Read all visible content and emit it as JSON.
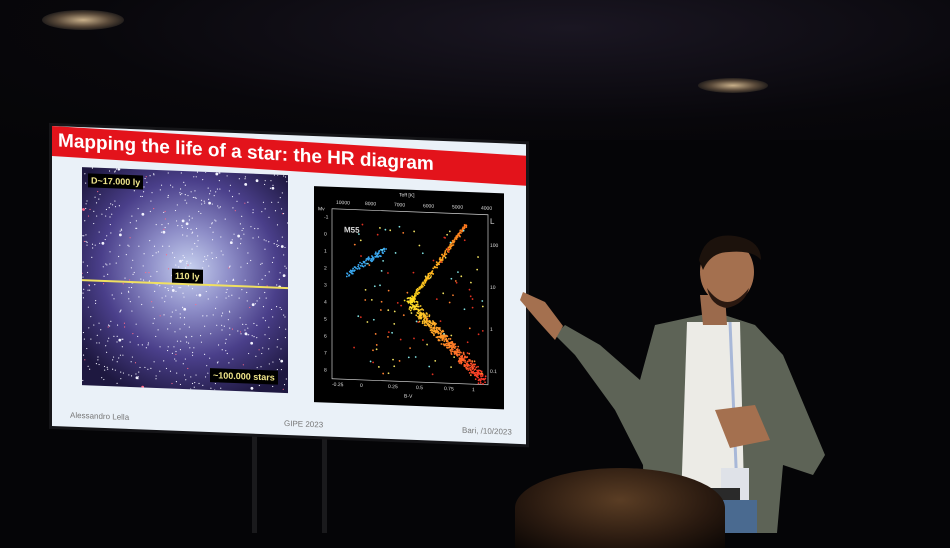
{
  "slide": {
    "title": "Mapping the life of a star: the HR diagram",
    "cluster_image": {
      "distance_label": "D~17.000 ly",
      "size_label": "110 ly",
      "stars_label": "~100.000 stars"
    },
    "hr_diagram": {
      "cluster_name": "M55",
      "top_axis_label": "Teff [K]",
      "top_ticks": [
        "10000",
        "8000",
        "7000",
        "6000",
        "5000",
        "4000"
      ],
      "left_axis_label": "Mv",
      "left_ticks": [
        "-1",
        "0",
        "1",
        "2",
        "3",
        "4",
        "5",
        "6",
        "7",
        "8"
      ],
      "right_axis_label": "L",
      "right_ticks": [
        "100",
        "10",
        "1",
        "0.1"
      ],
      "bottom_axis_label": "B-V",
      "bottom_ticks": [
        "-0.25",
        "0",
        "0.25",
        "0.5",
        "0.75",
        "1"
      ]
    },
    "footer": {
      "author": "Alessandro Lella",
      "event": "GIPE 2023",
      "place_date": "Bari, /10/2023"
    }
  },
  "colors": {
    "title_bar": "#e3131b",
    "slide_bg": "#eaf1f8",
    "jacket": "#5d6356"
  }
}
